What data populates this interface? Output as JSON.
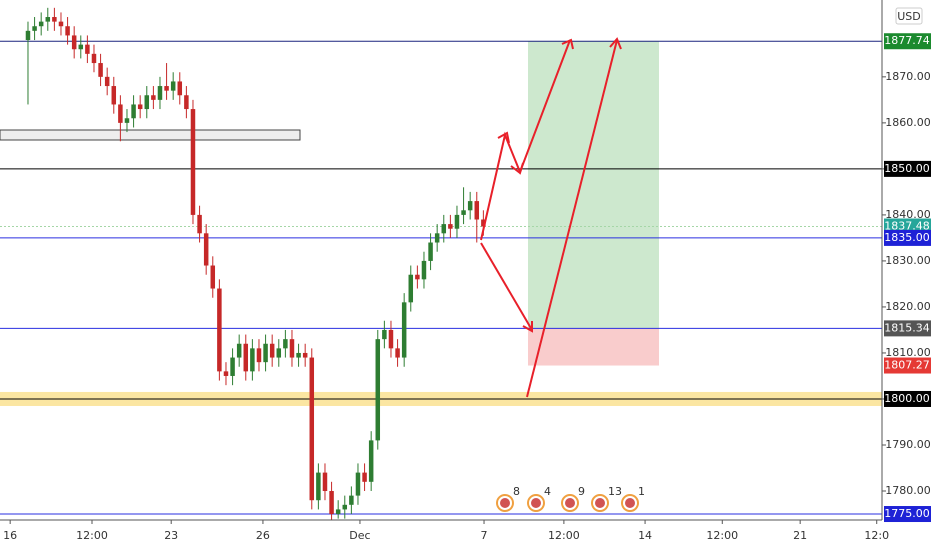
{
  "chart_data": {
    "type": "candlestick",
    "currency": "USD",
    "ylim": [
      1773.7,
      1886.7
    ],
    "yticks": [
      {
        "value": 1780,
        "label": "1780.00"
      },
      {
        "value": 1790,
        "label": "1790.00"
      },
      {
        "value": 1800,
        "label": "1800.00"
      },
      {
        "value": 1810,
        "label": "1810.00"
      },
      {
        "value": 1820,
        "label": "1820.00"
      },
      {
        "value": 1830,
        "label": "1830.00"
      },
      {
        "value": 1840,
        "label": "1840.00"
      },
      {
        "value": 1850,
        "label": "1850.00"
      },
      {
        "value": 1860,
        "label": "1860.00"
      },
      {
        "value": 1870,
        "label": "1870.00"
      }
    ],
    "xlim": [
      -4.24,
      129.4
    ],
    "xticks": [
      {
        "value": -2.7,
        "label": "16"
      },
      {
        "value": 9.7,
        "label": "12:00"
      },
      {
        "value": 21.7,
        "label": "23"
      },
      {
        "value": 35.6,
        "label": "26"
      },
      {
        "value": 50.3,
        "label": "Dec"
      },
      {
        "value": 69.1,
        "label": "7"
      },
      {
        "value": 81.2,
        "label": "12:00"
      },
      {
        "value": 93.5,
        "label": "14"
      },
      {
        "value": 105.2,
        "label": "12:00"
      },
      {
        "value": 117,
        "label": "21"
      },
      {
        "value": 128.6,
        "label": "12:0"
      }
    ],
    "up_color": "#2e7d32",
    "down_color": "#c62828",
    "candles": {
      "open": [
        1878,
        1880,
        1881,
        1882,
        1883,
        1882,
        1881,
        1879,
        1876,
        1877,
        1875,
        1873,
        1870,
        1868,
        1864,
        1860,
        1861,
        1864,
        1863,
        1866,
        1865,
        1868,
        1867,
        1869,
        1866,
        1863,
        1840,
        1836,
        1829,
        1824,
        1806,
        1805,
        1809,
        1812,
        1806,
        1811,
        1808,
        1812,
        1809,
        1811,
        1813,
        1809,
        1810,
        1809,
        1778,
        1784,
        1780,
        1775,
        1776,
        1777,
        1779,
        1784,
        1782,
        1791,
        1813,
        1815,
        1811,
        1809,
        1821,
        1827,
        1826,
        1830,
        1834,
        1836,
        1838,
        1837,
        1840,
        1841,
        1843,
        1839
      ],
      "high": [
        1882,
        1883,
        1884,
        1885,
        1885,
        1884,
        1883,
        1881,
        1879,
        1879,
        1877,
        1875,
        1872,
        1870,
        1866,
        1863,
        1866,
        1866,
        1868,
        1868,
        1870,
        1873,
        1871,
        1871,
        1868,
        1865,
        1842,
        1838,
        1831,
        1826,
        1808,
        1811,
        1814,
        1814,
        1813,
        1813,
        1814,
        1814,
        1813,
        1815,
        1815,
        1812,
        1812,
        1811,
        1786,
        1786,
        1782,
        1778,
        1779,
        1781,
        1786,
        1786,
        1793,
        1815,
        1817,
        1817,
        1813,
        1823,
        1829,
        1829,
        1832,
        1836,
        1838,
        1840,
        1840,
        1842,
        1846,
        1845,
        1845,
        1841
      ],
      "low": [
        1864,
        1878,
        1879,
        1880,
        1880,
        1879,
        1877,
        1874,
        1874,
        1873,
        1871,
        1868,
        1866,
        1862,
        1856,
        1858,
        1859,
        1861,
        1861,
        1863,
        1863,
        1865,
        1865,
        1864,
        1861,
        1838,
        1834,
        1827,
        1822,
        1804,
        1803,
        1803,
        1807,
        1804,
        1804,
        1806,
        1806,
        1807,
        1807,
        1809,
        1807,
        1807,
        1807,
        1776,
        1776,
        1778,
        1773,
        1774,
        1774,
        1775,
        1777,
        1780,
        1780,
        1789,
        1811,
        1809,
        1807,
        1807,
        1819,
        1824,
        1824,
        1828,
        1832,
        1834,
        1835,
        1835,
        1838,
        1839,
        1834,
        1835.48
      ],
      "close": [
        1880,
        1881,
        1882,
        1883,
        1882,
        1881,
        1879,
        1876,
        1877,
        1875,
        1873,
        1870,
        1868,
        1864,
        1860,
        1861,
        1864,
        1863,
        1866,
        1865,
        1868,
        1867,
        1869,
        1866,
        1863,
        1840,
        1836,
        1829,
        1824,
        1806,
        1805,
        1809,
        1812,
        1806,
        1811,
        1808,
        1812,
        1809,
        1811,
        1813,
        1809,
        1810,
        1809,
        1778,
        1784,
        1780,
        1775,
        1776,
        1777,
        1779,
        1784,
        1782,
        1791,
        1813,
        1815,
        1811,
        1809,
        1821,
        1827,
        1826,
        1830,
        1834,
        1836,
        1838,
        1837,
        1840,
        1841,
        1843,
        1839,
        1837.48
      ]
    },
    "price_levels": [
      {
        "value": 1877.74,
        "label": "1877.74",
        "color": "#1b8a2e",
        "line_color": "#1a237e"
      },
      {
        "value": 1850,
        "label": "1850.00",
        "color": "#000000",
        "line_color": "#000000"
      },
      {
        "value": 1837.48,
        "label": "1837.48",
        "color": "#26a69a",
        "line_color": "#a5d6a7"
      },
      {
        "value": 1835,
        "label": "1835.00",
        "color": "#1e22d6",
        "line_color": "#2a2fe0"
      },
      {
        "value": 1815.34,
        "label": "1815.34",
        "color": "#555555",
        "line_color": "#2a2fe0"
      },
      {
        "value": 1807.27,
        "label": "1807.27",
        "color": "#e53935",
        "line_color": "none"
      },
      {
        "value": 1800,
        "label": "1800.00",
        "color": "#000000",
        "line_color": "#000000",
        "band": "#fbe6a2"
      },
      {
        "value": 1775,
        "label": "1775.00",
        "color": "#1e22d6",
        "line_color": "#2a2fe0"
      }
    ],
    "events": [
      "8",
      "4",
      "9",
      "13",
      "1"
    ]
  }
}
